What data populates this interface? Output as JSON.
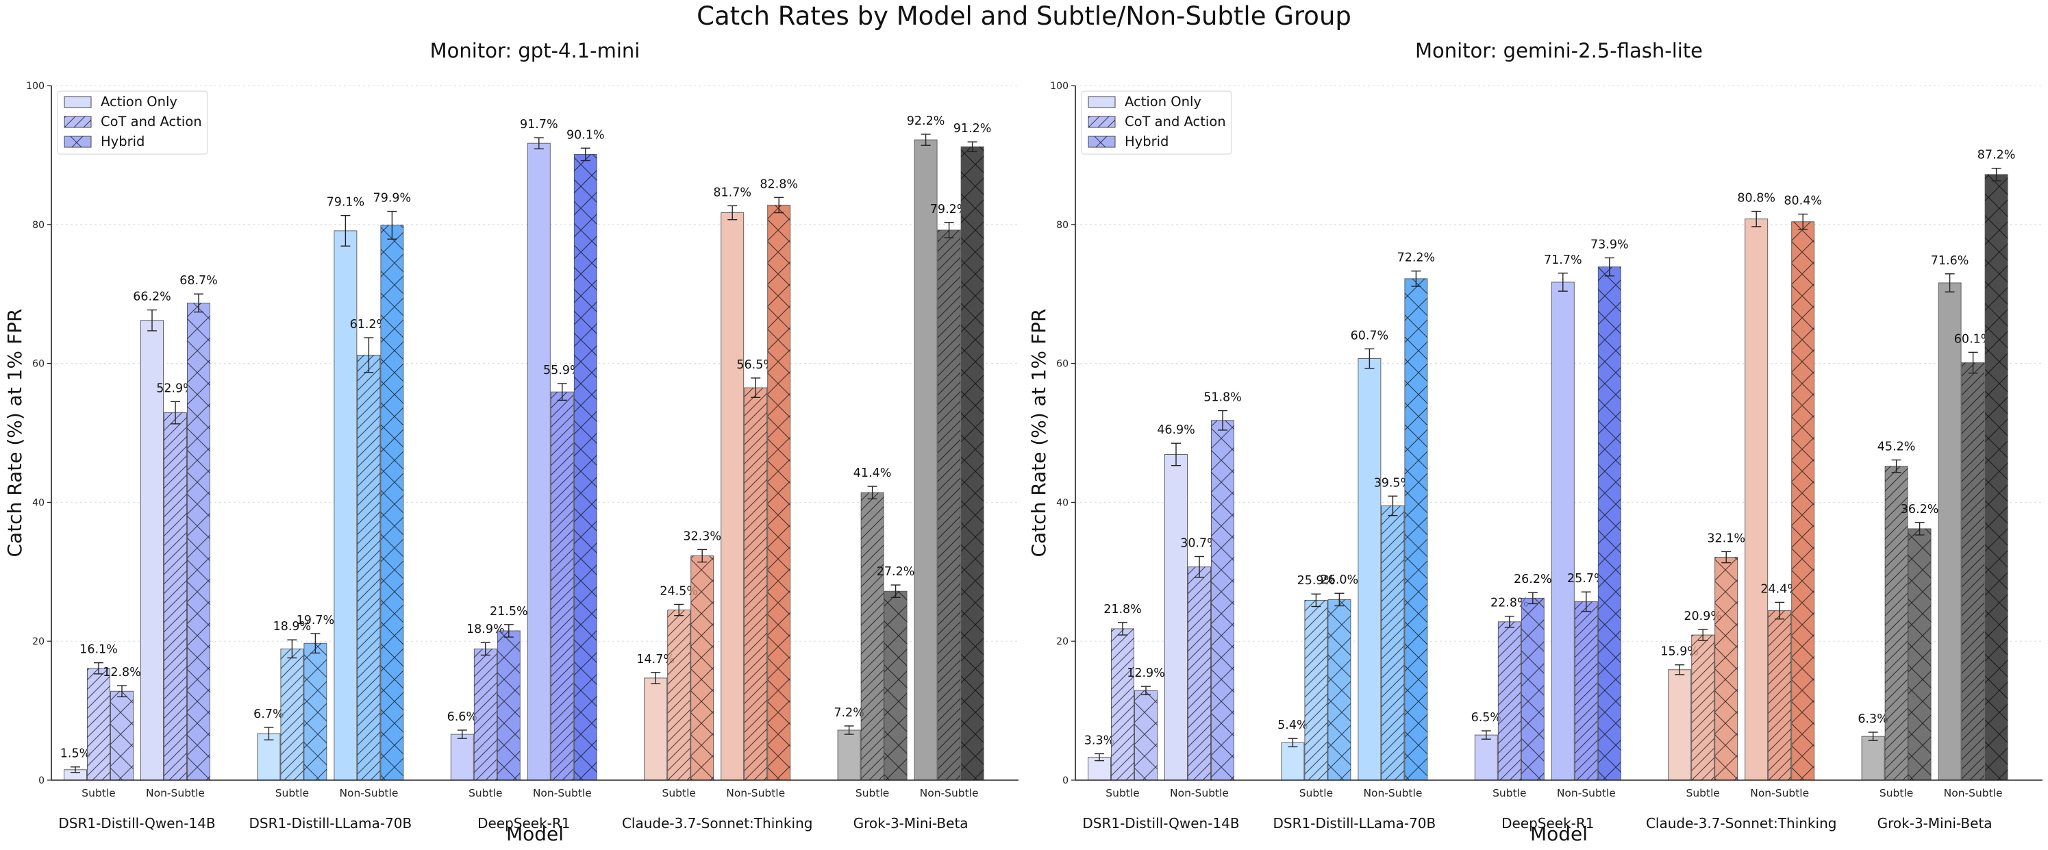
{
  "suptitle": "Catch Rates by Model and Subtle/Non-Subtle Group",
  "chart_data": [
    {
      "type": "bar",
      "title": "Monitor: gpt-4.1-mini",
      "xlabel": "Model",
      "ylabel": "Catch Rate (%) at 1% FPR",
      "ylim": [
        0,
        100
      ],
      "yticks": [
        "0",
        "20",
        "40",
        "60",
        "80",
        "100"
      ],
      "grid": "horizontal dotted",
      "legend_position": "upper-left",
      "legend": [
        "Action Only",
        "CoT and Action",
        "Hybrid"
      ],
      "groups": [
        "Subtle",
        "Non-Subtle"
      ],
      "categories": [
        "DSR1-Distill-Qwen-14B",
        "DSR1-Distill-LLama-70B",
        "DeepSeek-R1",
        "Claude-3.7-Sonnet:Thinking",
        "Grok-3-Mini-Beta"
      ],
      "series": [
        {
          "name": "Action Only",
          "subtle": [
            1.5,
            6.7,
            6.6,
            14.7,
            7.2
          ],
          "non_subtle": [
            66.2,
            79.1,
            91.7,
            81.7,
            92.2
          ]
        },
        {
          "name": "CoT and Action",
          "subtle": [
            16.1,
            18.9,
            18.9,
            24.5,
            41.4
          ],
          "non_subtle": [
            52.9,
            61.2,
            55.9,
            56.5,
            79.2
          ]
        },
        {
          "name": "Hybrid",
          "subtle": [
            12.8,
            19.7,
            21.5,
            32.3,
            27.2
          ],
          "non_subtle": [
            68.7,
            79.9,
            90.1,
            82.8,
            91.2
          ]
        }
      ],
      "error_bars": {
        "Action Only": {
          "subtle": [
            0.4,
            0.9,
            0.6,
            0.8,
            0.6
          ],
          "non_subtle": [
            1.5,
            2.2,
            0.8,
            1.0,
            0.8
          ]
        },
        "CoT and Action": {
          "subtle": [
            0.8,
            1.3,
            0.9,
            0.8,
            0.9
          ],
          "non_subtle": [
            1.6,
            2.5,
            1.2,
            1.4,
            1.1
          ]
        },
        "Hybrid": {
          "subtle": [
            0.8,
            1.4,
            0.9,
            0.9,
            0.9
          ],
          "non_subtle": [
            1.3,
            2.0,
            0.9,
            1.1,
            0.7
          ]
        }
      }
    },
    {
      "type": "bar",
      "title": "Monitor: gemini-2.5-flash-lite",
      "xlabel": "Model",
      "ylabel": "Catch Rate (%) at 1% FPR",
      "ylim": [
        0,
        100
      ],
      "yticks": [
        "0",
        "20",
        "40",
        "60",
        "80",
        "100"
      ],
      "grid": "horizontal dotted",
      "legend_position": "upper-left",
      "legend": [
        "Action Only",
        "CoT and Action",
        "Hybrid"
      ],
      "groups": [
        "Subtle",
        "Non-Subtle"
      ],
      "categories": [
        "DSR1-Distill-Qwen-14B",
        "DSR1-Distill-LLama-70B",
        "DeepSeek-R1",
        "Claude-3.7-Sonnet:Thinking",
        "Grok-3-Mini-Beta"
      ],
      "series": [
        {
          "name": "Action Only",
          "subtle": [
            3.3,
            5.4,
            6.5,
            15.9,
            6.3
          ],
          "non_subtle": [
            46.9,
            60.7,
            71.7,
            80.8,
            71.6
          ]
        },
        {
          "name": "CoT and Action",
          "subtle": [
            21.8,
            25.9,
            22.8,
            20.9,
            45.2
          ],
          "non_subtle": [
            30.7,
            39.5,
            25.7,
            24.4,
            60.1
          ]
        },
        {
          "name": "Hybrid",
          "subtle": [
            12.9,
            26.0,
            26.2,
            32.1,
            36.2
          ],
          "non_subtle": [
            51.8,
            72.2,
            73.9,
            80.4,
            87.2
          ]
        }
      ],
      "error_bars": {
        "Action Only": {
          "subtle": [
            0.5,
            0.6,
            0.6,
            0.7,
            0.6
          ],
          "non_subtle": [
            1.6,
            1.4,
            1.3,
            1.1,
            1.3
          ]
        },
        "CoT and Action": {
          "subtle": [
            0.9,
            0.9,
            0.8,
            0.8,
            0.9
          ],
          "non_subtle": [
            1.5,
            1.4,
            1.4,
            1.2,
            1.5
          ]
        },
        "Hybrid": {
          "subtle": [
            0.6,
            0.9,
            0.8,
            0.8,
            0.9
          ],
          "non_subtle": [
            1.4,
            1.1,
            1.3,
            1.1,
            0.9
          ]
        }
      }
    }
  ],
  "colors": {
    "model_palettes": [
      [
        "#d8dcfb",
        "#b7bef8",
        "#a7b1f5"
      ],
      [
        "#b5daff",
        "#95c8fb",
        "#63adf8"
      ],
      [
        "#b7c0fb",
        "#969ff5",
        "#6f80f0"
      ],
      [
        "#f0c3b5",
        "#e9a48f",
        "#e18a6f"
      ],
      [
        "#a3a3a3",
        "#6e6e6e",
        "#4c4c4c"
      ]
    ],
    "legend": [
      "#d8dcfb",
      "#b7bef8",
      "#a7b1f5"
    ]
  }
}
